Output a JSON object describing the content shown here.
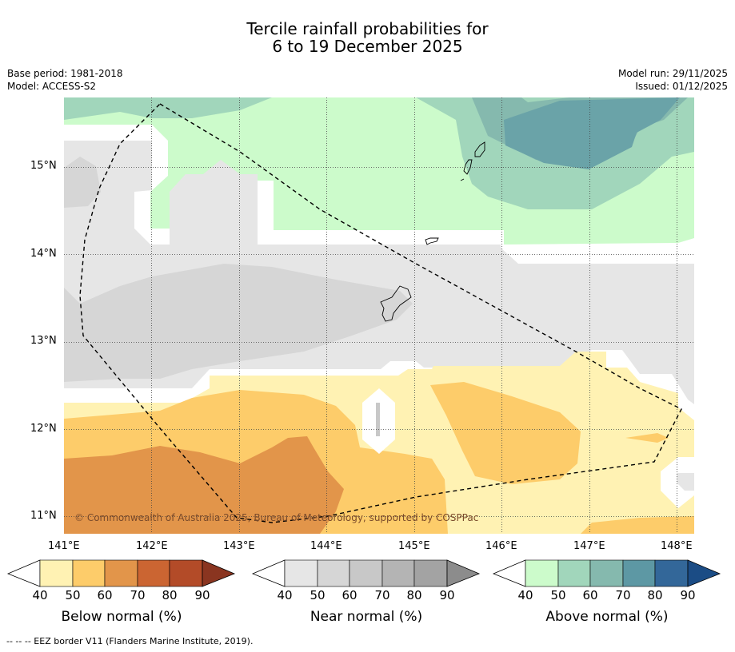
{
  "title": {
    "line1": "Tercile rainfall probabilities for",
    "line2": "6 to 19 December 2025"
  },
  "meta": {
    "base_period": "Base period: 1981-2018",
    "model": "Model: ACCESS-S2",
    "model_run": "Model run: 29/11/2025",
    "issued": "Issued: 01/12/2025"
  },
  "map": {
    "lat_ticks": [
      "15°N",
      "14°N",
      "13°N",
      "12°N",
      "11°N"
    ],
    "lon_ticks": [
      "141°E",
      "142°E",
      "143°E",
      "144°E",
      "145°E",
      "146°E",
      "147°E",
      "148°E"
    ],
    "copyright": "© Commonwealth of Australia 2025, Bureau of Meteorology, supported by COSPPac"
  },
  "colorbars": [
    {
      "label": "Below normal (%)",
      "ticks": [
        "40",
        "50",
        "60",
        "70",
        "80",
        "90"
      ],
      "colors": [
        "#fff2b3",
        "#fdcc6a",
        "#e2954a",
        "#cb6532",
        "#b34b28",
        "#8a3520"
      ]
    },
    {
      "label": "Near normal (%)",
      "ticks": [
        "40",
        "50",
        "60",
        "70",
        "80",
        "90"
      ],
      "colors": [
        "#e6e6e6",
        "#d6d6d6",
        "#c8c8c8",
        "#b4b4b4",
        "#a3a3a3",
        "#8c8c8c"
      ]
    },
    {
      "label": "Above normal (%)",
      "ticks": [
        "40",
        "50",
        "60",
        "70",
        "80",
        "90"
      ],
      "colors": [
        "#ccfbcb",
        "#a1d6bb",
        "#85b9ae",
        "#5d98a4",
        "#336799",
        "#1b4c85"
      ]
    }
  ],
  "footer": "--  --  -- EEZ border V11 (Flanders Marine Institute, 2019)."
}
